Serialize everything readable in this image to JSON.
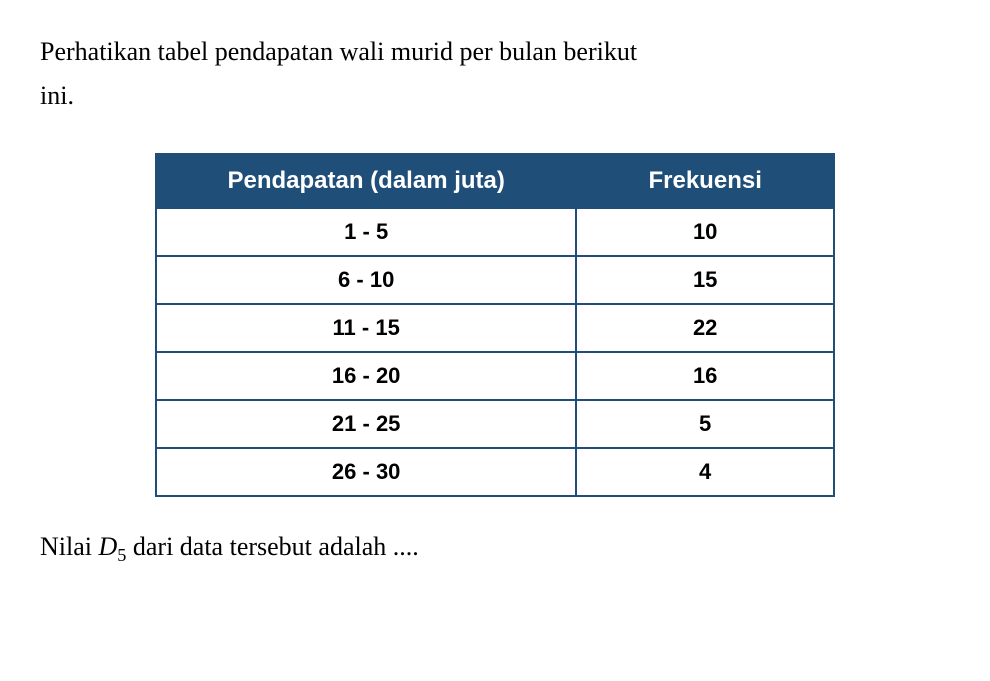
{
  "intro": {
    "line1": "Perhatikan tabel pendapatan wali murid per bulan berikut",
    "line2": "ini."
  },
  "table": {
    "header_bg_color": "#1f4e79",
    "header_text_color": "#ffffff",
    "border_color": "#1f4e79",
    "columns": [
      "Pendapatan (dalam juta)",
      "Frekuensi"
    ],
    "rows": [
      [
        "1 - 5",
        "10"
      ],
      [
        "6 - 10",
        "15"
      ],
      [
        "11 - 15",
        "22"
      ],
      [
        "16 - 20",
        "16"
      ],
      [
        "21 - 25",
        "5"
      ],
      [
        "26 - 30",
        "4"
      ]
    ]
  },
  "question": {
    "prefix": "Nilai ",
    "variable": "D",
    "subscript": "5",
    "suffix": " dari data tersebut adalah ...."
  }
}
